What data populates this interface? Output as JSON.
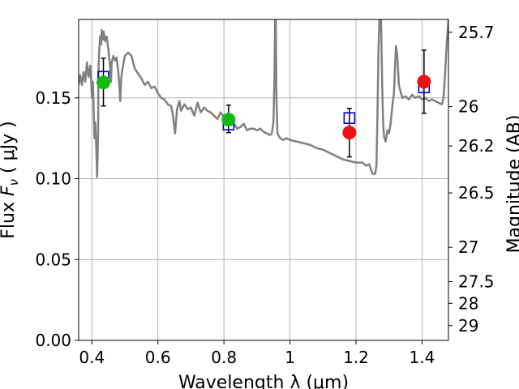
{
  "chart_data": {
    "type": "scatter",
    "xlabel": "Wavelength  λ (μm)",
    "ylabel": "Flux  F_ν  ( μJy )",
    "ylabel_parts": {
      "main": "Flux  ",
      "symbol": "F",
      "sub": "ν",
      "unit": "  ( μJy )"
    },
    "y2label": "Magnitude (AB)",
    "xlim": [
      0.36,
      1.48
    ],
    "ylim": [
      0.0,
      0.1985
    ],
    "grid": true,
    "xticks": [
      {
        "value": 0.4,
        "label": "0.4"
      },
      {
        "value": 0.6,
        "label": "0.6"
      },
      {
        "value": 0.8,
        "label": "0.8"
      },
      {
        "value": 1.0,
        "label": "1"
      },
      {
        "value": 1.2,
        "label": "1.2"
      },
      {
        "value": 1.4,
        "label": "1.4"
      }
    ],
    "yticks": [
      {
        "value": 0.0,
        "label": "0.00"
      },
      {
        "value": 0.05,
        "label": "0.05"
      },
      {
        "value": 0.1,
        "label": "0.10"
      },
      {
        "value": 0.15,
        "label": "0.15"
      }
    ],
    "y2ticks": [
      {
        "mag": 25.7,
        "label": "25.7"
      },
      {
        "mag": 26.0,
        "label": "26"
      },
      {
        "mag": 26.2,
        "label": "26.2"
      },
      {
        "mag": 26.5,
        "label": "26.5"
      },
      {
        "mag": 27.0,
        "label": "27"
      },
      {
        "mag": 27.5,
        "label": "27.5"
      },
      {
        "mag": 28.0,
        "label": "28"
      },
      {
        "mag": 29.0,
        "label": "29"
      }
    ],
    "colors": {
      "model": "#808080",
      "model_photometry": "#0000cc",
      "observed_detected": "#11bb11",
      "observed_other": "#ee1111",
      "errorbar": "#000000",
      "grid": "#b0b0b0"
    },
    "series": [
      {
        "kind": "model-sed",
        "points": [
          [
            0.36,
            0.158
          ],
          [
            0.365,
            0.164
          ],
          [
            0.37,
            0.158
          ],
          [
            0.375,
            0.166
          ],
          [
            0.38,
            0.16
          ],
          [
            0.385,
            0.172
          ],
          [
            0.39,
            0.163
          ],
          [
            0.395,
            0.17
          ],
          [
            0.398,
            0.16
          ],
          [
            0.4,
            0.15
          ],
          [
            0.403,
            0.16
          ],
          [
            0.406,
            0.14
          ],
          [
            0.408,
            0.125
          ],
          [
            0.41,
            0.135
          ],
          [
            0.413,
            0.12
          ],
          [
            0.416,
            0.101
          ],
          [
            0.419,
            0.13
          ],
          [
            0.42,
            0.165
          ],
          [
            0.422,
            0.178
          ],
          [
            0.425,
            0.188
          ],
          [
            0.428,
            0.183
          ],
          [
            0.43,
            0.192
          ],
          [
            0.433,
            0.186
          ],
          [
            0.436,
            0.191
          ],
          [
            0.44,
            0.185
          ],
          [
            0.445,
            0.188
          ],
          [
            0.45,
            0.18
          ],
          [
            0.455,
            0.17
          ],
          [
            0.458,
            0.16
          ],
          [
            0.46,
            0.172
          ],
          [
            0.465,
            0.176
          ],
          [
            0.47,
            0.173
          ],
          [
            0.475,
            0.175
          ],
          [
            0.48,
            0.166
          ],
          [
            0.483,
            0.158
          ],
          [
            0.486,
            0.148
          ],
          [
            0.489,
            0.162
          ],
          [
            0.492,
            0.167
          ],
          [
            0.5,
            0.176
          ],
          [
            0.51,
            0.178
          ],
          [
            0.52,
            0.176
          ],
          [
            0.53,
            0.168
          ],
          [
            0.54,
            0.165
          ],
          [
            0.55,
            0.162
          ],
          [
            0.56,
            0.158
          ],
          [
            0.57,
            0.16
          ],
          [
            0.58,
            0.156
          ],
          [
            0.59,
            0.157
          ],
          [
            0.6,
            0.153
          ],
          [
            0.61,
            0.15
          ],
          [
            0.62,
            0.149
          ],
          [
            0.63,
            0.146
          ],
          [
            0.64,
            0.145
          ],
          [
            0.645,
            0.14
          ],
          [
            0.652,
            0.128
          ],
          [
            0.658,
            0.143
          ],
          [
            0.665,
            0.148
          ],
          [
            0.67,
            0.142
          ],
          [
            0.68,
            0.146
          ],
          [
            0.69,
            0.143
          ],
          [
            0.7,
            0.144
          ],
          [
            0.71,
            0.139
          ],
          [
            0.72,
            0.147
          ],
          [
            0.73,
            0.141
          ],
          [
            0.74,
            0.144
          ],
          [
            0.75,
            0.142
          ],
          [
            0.76,
            0.141
          ],
          [
            0.77,
            0.139
          ],
          [
            0.78,
            0.137
          ],
          [
            0.79,
            0.141
          ],
          [
            0.8,
            0.138
          ],
          [
            0.81,
            0.137
          ],
          [
            0.82,
            0.135
          ],
          [
            0.83,
            0.134
          ],
          [
            0.84,
            0.131
          ],
          [
            0.85,
            0.132
          ],
          [
            0.86,
            0.134
          ],
          [
            0.87,
            0.13
          ],
          [
            0.88,
            0.131
          ],
          [
            0.89,
            0.131
          ],
          [
            0.9,
            0.13
          ],
          [
            0.91,
            0.131
          ],
          [
            0.92,
            0.129
          ],
          [
            0.93,
            0.128
          ],
          [
            0.94,
            0.127
          ],
          [
            0.945,
            0.128
          ],
          [
            0.95,
            0.135
          ],
          [
            0.953,
            0.162
          ],
          [
            0.955,
            0.198
          ],
          [
            0.957,
            0.198
          ],
          [
            0.959,
            0.15
          ],
          [
            0.962,
            0.128
          ],
          [
            0.97,
            0.125
          ],
          [
            0.98,
            0.124
          ],
          [
            0.99,
            0.125
          ],
          [
            1.0,
            0.124
          ],
          [
            1.02,
            0.123
          ],
          [
            1.04,
            0.122
          ],
          [
            1.06,
            0.121
          ],
          [
            1.08,
            0.119
          ],
          [
            1.1,
            0.118
          ],
          [
            1.12,
            0.116
          ],
          [
            1.14,
            0.114
          ],
          [
            1.16,
            0.112
          ],
          [
            1.18,
            0.111
          ],
          [
            1.2,
            0.11
          ],
          [
            1.22,
            0.11
          ],
          [
            1.23,
            0.108
          ],
          [
            1.24,
            0.109
          ],
          [
            1.245,
            0.106
          ],
          [
            1.25,
            0.103
          ],
          [
            1.258,
            0.103
          ],
          [
            1.262,
            0.108
          ],
          [
            1.265,
            0.14
          ],
          [
            1.268,
            0.18
          ],
          [
            1.271,
            0.198
          ],
          [
            1.276,
            0.198
          ],
          [
            1.279,
            0.16
          ],
          [
            1.282,
            0.135
          ],
          [
            1.285,
            0.126
          ],
          [
            1.29,
            0.123
          ],
          [
            1.295,
            0.13
          ],
          [
            1.3,
            0.128
          ],
          [
            1.305,
            0.134
          ],
          [
            1.31,
            0.145
          ],
          [
            1.315,
            0.153
          ],
          [
            1.318,
            0.168
          ],
          [
            1.321,
            0.182
          ],
          [
            1.325,
            0.176
          ],
          [
            1.33,
            0.158
          ],
          [
            1.34,
            0.15
          ],
          [
            1.35,
            0.151
          ],
          [
            1.36,
            0.149
          ],
          [
            1.37,
            0.152
          ],
          [
            1.38,
            0.15
          ],
          [
            1.39,
            0.151
          ],
          [
            1.4,
            0.149
          ],
          [
            1.41,
            0.15
          ],
          [
            1.42,
            0.148
          ],
          [
            1.43,
            0.149
          ],
          [
            1.44,
            0.148
          ],
          [
            1.45,
            0.147
          ],
          [
            1.46,
            0.146
          ],
          [
            1.465,
            0.15
          ],
          [
            1.47,
            0.165
          ],
          [
            1.475,
            0.185
          ],
          [
            1.48,
            0.198
          ]
        ]
      },
      {
        "kind": "model-photometry",
        "marker": "open-square",
        "points": [
          {
            "x": 0.435,
            "y": 0.163
          },
          {
            "x": 0.814,
            "y": 0.1335
          },
          {
            "x": 1.18,
            "y": 0.1375
          },
          {
            "x": 1.406,
            "y": 0.1565
          }
        ]
      },
      {
        "kind": "observed",
        "marker": "filled-circle",
        "points": [
          {
            "x": 0.435,
            "y": 0.1595,
            "yerr_low": 0.145,
            "yerr_high": 0.1745,
            "color_key": "observed_detected"
          },
          {
            "x": 0.814,
            "y": 0.1365,
            "yerr_low": 0.1285,
            "yerr_high": 0.1455,
            "color_key": "observed_detected"
          },
          {
            "x": 1.18,
            "y": 0.1285,
            "yerr_low": 0.1135,
            "yerr_high": 0.1435,
            "color_key": "observed_other"
          },
          {
            "x": 1.406,
            "y": 0.16,
            "yerr_low": 0.1405,
            "yerr_high": 0.1795,
            "color_key": "observed_other"
          }
        ]
      }
    ]
  }
}
